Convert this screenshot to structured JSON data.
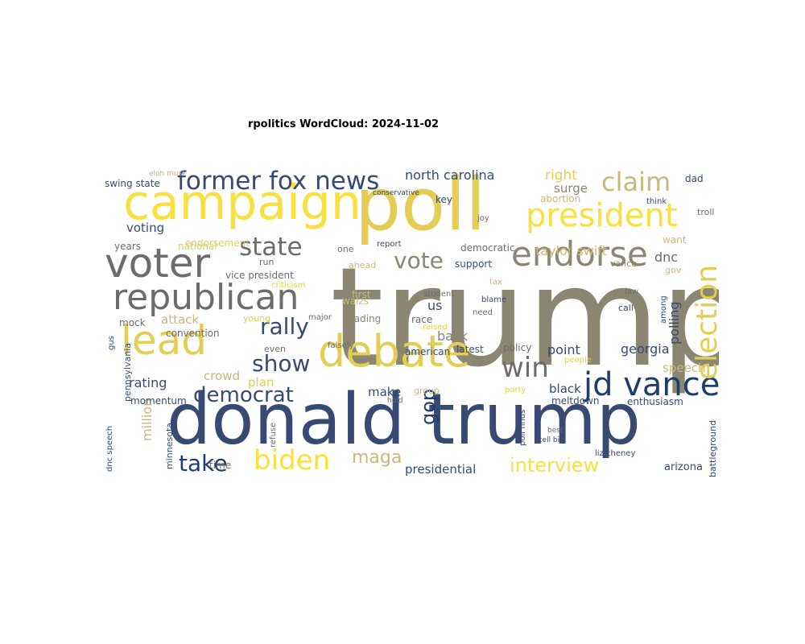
{
  "chart_data": {
    "type": "wordcloud",
    "title": "rpolitics WordCloud: 2024-11-02",
    "colors": [
      "#8a8671",
      "#364a73",
      "#f9e03e",
      "#e4cd55",
      "#6d6c6a",
      "#c8b87a",
      "#1f3d6e"
    ],
    "words": [
      {
        "text": "trump",
        "weight": 100,
        "color": "#8a8671"
      },
      {
        "text": "donald trump",
        "weight": 72,
        "color": "#364a73"
      },
      {
        "text": "poll",
        "weight": 68,
        "color": "#e4cd55"
      },
      {
        "text": "campaign",
        "weight": 48,
        "color": "#f9e03e"
      },
      {
        "text": "debate",
        "weight": 43,
        "color": "#e4cd55"
      },
      {
        "text": "voter",
        "weight": 40,
        "color": "#6d6c6a"
      },
      {
        "text": "lead",
        "weight": 40,
        "color": "#e4cd55"
      },
      {
        "text": "republican",
        "weight": 34,
        "color": "#6d6c6a"
      },
      {
        "text": "endorse",
        "weight": 34,
        "color": "#8a8671"
      },
      {
        "text": "president",
        "weight": 32,
        "color": "#f9e03e"
      },
      {
        "text": "jd vance",
        "weight": 30,
        "color": "#1f3d6e"
      },
      {
        "text": "election",
        "weight": 29,
        "color": "#e4cd55"
      },
      {
        "text": "biden",
        "weight": 28,
        "color": "#f9e03e"
      },
      {
        "text": "former fox news",
        "weight": 26,
        "color": "#364a73"
      },
      {
        "text": "win",
        "weight": 27,
        "color": "#6d6c6a"
      },
      {
        "text": "claim",
        "weight": 26,
        "color": "#c8b87a"
      },
      {
        "text": "state",
        "weight": 26,
        "color": "#6d6c6a"
      },
      {
        "text": "vote",
        "weight": 24,
        "color": "#8a8671"
      },
      {
        "text": "rally",
        "weight": 23,
        "color": "#364a73"
      },
      {
        "text": "take",
        "weight": 22,
        "color": "#1f3d6e"
      },
      {
        "text": "show",
        "weight": 22,
        "color": "#364a73"
      },
      {
        "text": "democrat",
        "weight": 22,
        "color": "#364a73"
      },
      {
        "text": "interview",
        "weight": 20,
        "color": "#f9e03e"
      },
      {
        "text": "gop",
        "weight": 20,
        "color": "#1f3d6e"
      },
      {
        "text": "maga",
        "weight": 18,
        "color": "#c8b87a"
      },
      {
        "text": "north carolina",
        "weight": 14,
        "color": "#364a73"
      },
      {
        "text": "right",
        "weight": 14,
        "color": "#e4cd55"
      },
      {
        "text": "taylor swift",
        "weight": 13,
        "color": "#c8b87a"
      },
      {
        "text": "surge",
        "weight": 12,
        "color": "#8a8671"
      },
      {
        "text": "dnc",
        "weight": 14,
        "color": "#6d6c6a"
      },
      {
        "text": "polling",
        "weight": 14,
        "color": "#364a73"
      },
      {
        "text": "georgia",
        "weight": 14,
        "color": "#364a73"
      },
      {
        "text": "point",
        "weight": 14,
        "color": "#364a73"
      },
      {
        "text": "speech",
        "weight": 13,
        "color": "#c8b87a"
      },
      {
        "text": "million",
        "weight": 14,
        "color": "#c8b87a"
      },
      {
        "text": "rating",
        "weight": 14,
        "color": "#364a73"
      },
      {
        "text": "crowd",
        "weight": 13,
        "color": "#c8b87a"
      },
      {
        "text": "plan",
        "weight": 13,
        "color": "#e4cd55"
      },
      {
        "text": "attack",
        "weight": 13,
        "color": "#c8b87a"
      },
      {
        "text": "voting",
        "weight": 13,
        "color": "#364a73"
      },
      {
        "text": "us",
        "weight": 14,
        "color": "#364a73"
      },
      {
        "text": "back",
        "weight": 14,
        "color": "#8a8671"
      },
      {
        "text": "black",
        "weight": 13,
        "color": "#364a73"
      },
      {
        "text": "make",
        "weight": 13,
        "color": "#364a73"
      },
      {
        "text": "presidential",
        "weight": 13,
        "color": "#364a73"
      },
      {
        "text": "arizona",
        "weight": 11,
        "color": "#364a73"
      },
      {
        "text": "swing state",
        "weight": 10,
        "color": "#364a73"
      },
      {
        "text": "endorsement",
        "weight": 10,
        "color": "#e4cd55"
      },
      {
        "text": "years",
        "weight": 10,
        "color": "#6d6c6a"
      },
      {
        "text": "national",
        "weight": 10,
        "color": "#e4cd55"
      },
      {
        "text": "vice president",
        "weight": 10,
        "color": "#6d6c6a"
      },
      {
        "text": "mock",
        "weight": 10,
        "color": "#6d6c6a"
      },
      {
        "text": "convention",
        "weight": 10,
        "color": "#6d6c6a"
      },
      {
        "text": "momentum",
        "weight": 10,
        "color": "#364a73"
      },
      {
        "text": "pennsylvania",
        "weight": 10,
        "color": "#364a73"
      },
      {
        "text": "dnc speech",
        "weight": 9,
        "color": "#364a73"
      },
      {
        "text": "minnesota",
        "weight": 9,
        "color": "#364a73"
      },
      {
        "text": "time",
        "weight": 10,
        "color": "#6d6c6a"
      },
      {
        "text": "want",
        "weight": 10,
        "color": "#c8b87a"
      },
      {
        "text": "vance",
        "weight": 9,
        "color": "#8a8671"
      },
      {
        "text": "abortion",
        "weight": 10,
        "color": "#c8b87a"
      },
      {
        "text": "key",
        "weight": 10,
        "color": "#364a73"
      },
      {
        "text": "support",
        "weight": 10,
        "color": "#364a73"
      },
      {
        "text": "democratic",
        "weight": 10,
        "color": "#6d6c6a"
      },
      {
        "text": "report",
        "weight": 9,
        "color": "#364a73"
      },
      {
        "text": "walzs",
        "weight": 10,
        "color": "#c8b87a"
      },
      {
        "text": "first",
        "weight": 10,
        "color": "#c8b87a"
      },
      {
        "text": "leading",
        "weight": 10,
        "color": "#8a8671"
      },
      {
        "text": "race",
        "weight": 10,
        "color": "#6d6c6a"
      },
      {
        "text": "american",
        "weight": 10,
        "color": "#364a73"
      },
      {
        "text": "latest",
        "weight": 10,
        "color": "#364a73"
      },
      {
        "text": "policy",
        "weight": 10,
        "color": "#6d6c6a"
      },
      {
        "text": "enthusiasm",
        "weight": 10,
        "color": "#364a73"
      },
      {
        "text": "meltdown",
        "weight": 10,
        "color": "#364a73"
      },
      {
        "text": "poll finds",
        "weight": 9,
        "color": "#364a73"
      },
      {
        "text": "liz cheney",
        "weight": 8,
        "color": "#364a73"
      },
      {
        "text": "battleground",
        "weight": 9,
        "color": "#364a73"
      },
      {
        "text": "call",
        "weight": 9,
        "color": "#364a73"
      },
      {
        "text": "among",
        "weight": 9,
        "color": "#364a73"
      },
      {
        "text": "gov",
        "weight": 9,
        "color": "#c8b87a"
      },
      {
        "text": "dad",
        "weight": 10,
        "color": "#364a73"
      },
      {
        "text": "troll",
        "weight": 9,
        "color": "#6d6c6a"
      },
      {
        "text": "think",
        "weight": 8,
        "color": "#364a73"
      },
      {
        "text": "tell big",
        "weight": 8,
        "color": "#364a73"
      },
      {
        "text": "best",
        "weight": 8,
        "color": "#6d6c6a"
      },
      {
        "text": "people",
        "weight": 9,
        "color": "#e4cd55"
      },
      {
        "text": "elon musk",
        "weight": 7,
        "color": "#c8b87a"
      },
      {
        "text": "conservative",
        "weight": 8,
        "color": "#364a73"
      },
      {
        "text": "joy",
        "weight": 8,
        "color": "#6d6c6a"
      },
      {
        "text": "ahead",
        "weight": 9,
        "color": "#c8b87a"
      },
      {
        "text": "one",
        "weight": 9,
        "color": "#6d6c6a"
      },
      {
        "text": "run",
        "weight": 9,
        "color": "#6d6c6a"
      },
      {
        "text": "criticism",
        "weight": 8,
        "color": "#e4cd55"
      },
      {
        "text": "young",
        "weight": 9,
        "color": "#e4cd55"
      },
      {
        "text": "major",
        "weight": 8,
        "color": "#6d6c6a"
      },
      {
        "text": "even",
        "weight": 9,
        "color": "#6d6c6a"
      },
      {
        "text": "falsely",
        "weight": 8,
        "color": "#6d6c6a"
      },
      {
        "text": "raised",
        "weight": 8,
        "color": "#e4cd55"
      },
      {
        "text": "blame",
        "weight": 8,
        "color": "#364a73"
      },
      {
        "text": "need",
        "weight": 8,
        "color": "#6d6c6a"
      },
      {
        "text": "student",
        "weight": 8,
        "color": "#6d6c6a"
      },
      {
        "text": "tax",
        "weight": 8,
        "color": "#c8b87a"
      },
      {
        "text": "group",
        "weight": 9,
        "color": "#c8b87a"
      },
      {
        "text": "party",
        "weight": 8,
        "color": "#e4cd55"
      },
      {
        "text": "law",
        "weight": 8,
        "color": "#6d6c6a"
      },
      {
        "text": "hold",
        "weight": 7,
        "color": "#6d6c6a"
      },
      {
        "text": "gus",
        "weight": 8,
        "color": "#364a73"
      },
      {
        "text": "refuse",
        "weight": 8,
        "color": "#6d6c6a"
      }
    ]
  }
}
